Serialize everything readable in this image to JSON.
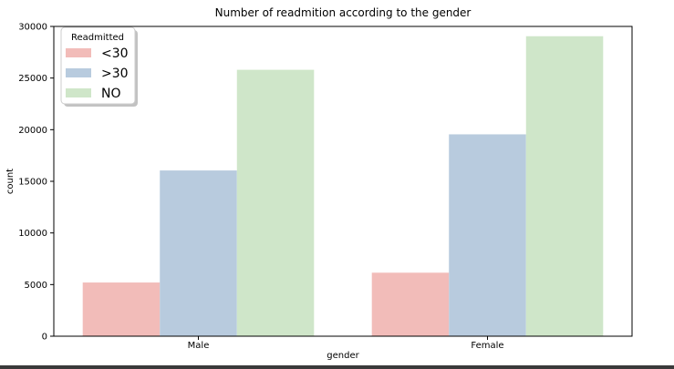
{
  "chart_data": {
    "type": "bar",
    "title": "Number of readmition according to the gender",
    "xlabel": "gender",
    "ylabel": "count",
    "categories": [
      "Male",
      "Female"
    ],
    "ylim": [
      0,
      30000
    ],
    "yticks": [
      0,
      5000,
      10000,
      15000,
      20000,
      25000,
      30000
    ],
    "grid": false,
    "legend": {
      "title": "Readmitted",
      "placement": "top-left"
    },
    "series": [
      {
        "name": "<30",
        "color": "#f2bcb9",
        "values": [
          5200,
          6150
        ]
      },
      {
        "name": ">30",
        "color": "#b8cbde",
        "values": [
          16050,
          19550
        ]
      },
      {
        "name": "NO",
        "color": "#cfe6c9",
        "values": [
          25800,
          29050
        ]
      }
    ]
  }
}
